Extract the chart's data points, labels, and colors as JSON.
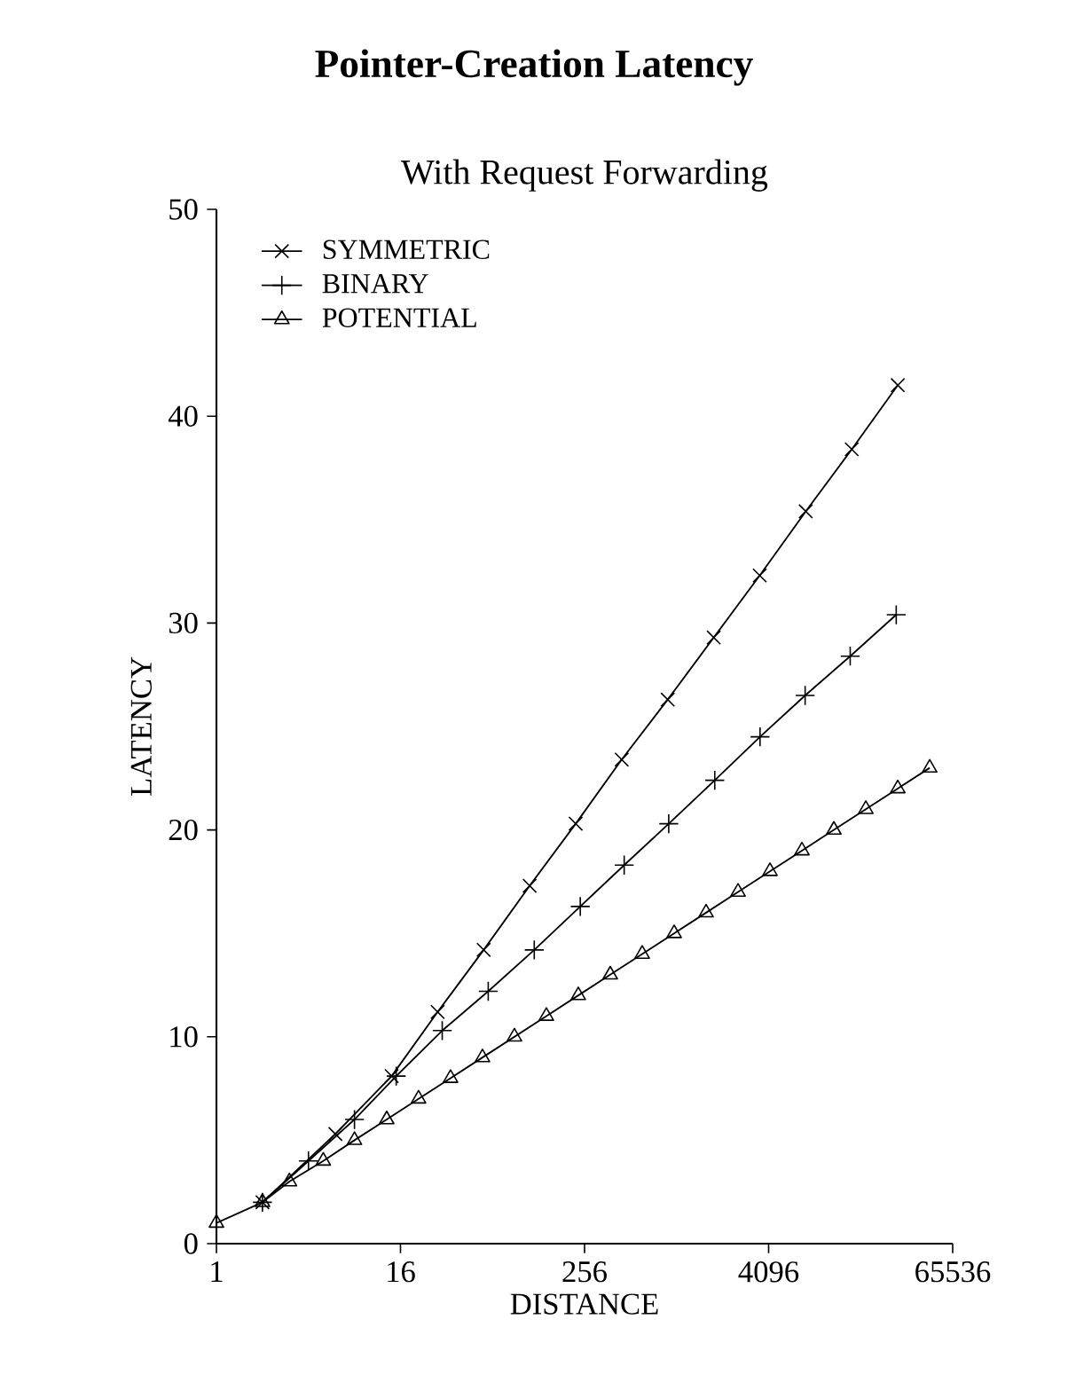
{
  "chart_data": {
    "type": "line",
    "title": "Pointer-Creation Latency",
    "subtitle": "With Request Forwarding",
    "xlabel": "DISTANCE",
    "ylabel": "LATENCY",
    "log": "x",
    "xlim": [
      1,
      65536
    ],
    "ylim": [
      0,
      50
    ],
    "xticks": [
      1,
      16,
      256,
      4096,
      65536
    ],
    "yticks": [
      0,
      10,
      20,
      30,
      40,
      50
    ],
    "legend": "top left",
    "series": [
      {
        "name": "SYMMETRIC",
        "color": "#000000",
        "marker": "cross",
        "x": [
          2,
          6,
          14,
          28,
          56,
          112,
          224,
          448,
          896,
          1792,
          3584,
          7168,
          14336,
          28672
        ],
        "values": [
          2,
          5.3,
          8.1,
          11.2,
          14.2,
          17.3,
          20.3,
          23.4,
          26.3,
          29.3,
          32.3,
          35.4,
          38.4,
          41.5
        ]
      },
      {
        "name": "BINARY",
        "color": "#000000",
        "marker": "cross",
        "x": [
          2,
          4,
          8,
          15,
          30,
          60,
          120,
          240,
          465,
          910,
          1820,
          3600,
          7100,
          14000,
          28000
        ],
        "values": [
          2,
          4,
          6,
          8.1,
          10.3,
          12.2,
          14.2,
          16.3,
          18.3,
          20.3,
          22.4,
          24.5,
          26.5,
          28.4,
          30.4
        ]
      },
      {
        "name": "POTENTIAL",
        "color": "#000000",
        "marker": "triangle",
        "x": [
          1,
          2,
          3,
          5,
          8,
          13,
          21,
          34,
          55,
          89,
          144,
          233,
          377,
          610,
          987,
          1597,
          2584,
          4181,
          6765,
          10946,
          17711,
          28657,
          46368
        ],
        "values": [
          1,
          2,
          3,
          4,
          5,
          6,
          7,
          8,
          9,
          10,
          11,
          12,
          13,
          14,
          15,
          16,
          17,
          18,
          19,
          20,
          21,
          22,
          23
        ]
      }
    ]
  }
}
